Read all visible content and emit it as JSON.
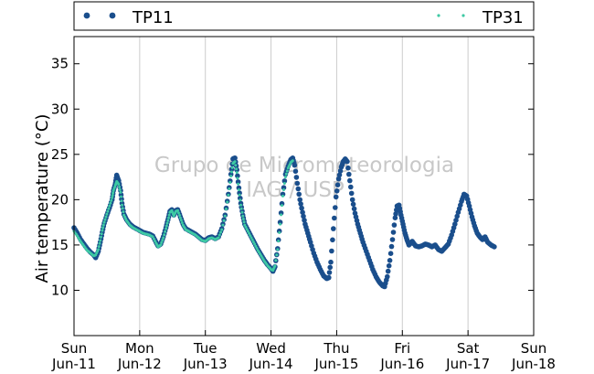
{
  "chart_data": {
    "type": "scatter",
    "title": "",
    "xlabel": "",
    "ylabel": "Air temperature (°C)",
    "ylim": [
      5,
      38
    ],
    "yticks": [
      10,
      15,
      20,
      25,
      30,
      35
    ],
    "x_range_days": [
      "Sun Jun-11",
      "Sun Jun-18"
    ],
    "x_ticks": [
      {
        "day": "Sun",
        "date": "Jun-11"
      },
      {
        "day": "Mon",
        "date": "Jun-12"
      },
      {
        "day": "Tue",
        "date": "Jun-13"
      },
      {
        "day": "Wed",
        "date": "Jun-14"
      },
      {
        "day": "Thu",
        "date": "Jun-15"
      },
      {
        "day": "Fri",
        "date": "Jun-16"
      },
      {
        "day": "Sat",
        "date": "Jun-17"
      },
      {
        "day": "Sun",
        "date": "Jun-18"
      }
    ],
    "grid": "vertical",
    "legend_placement": "top, outside plot",
    "watermark": [
      "Grupo de Micrometeorologia",
      "IAG / USP"
    ],
    "series": [
      {
        "name": "TP11",
        "color": "#1a4e8c",
        "marker": "circle",
        "points": [
          [
            0.0,
            16.9
          ],
          [
            0.05,
            16.3
          ],
          [
            0.1,
            15.6
          ],
          [
            0.15,
            15.1
          ],
          [
            0.2,
            14.6
          ],
          [
            0.25,
            14.2
          ],
          [
            0.3,
            13.9
          ],
          [
            0.33,
            13.6
          ],
          [
            0.37,
            14.3
          ],
          [
            0.4,
            15.3
          ],
          [
            0.43,
            16.4
          ],
          [
            0.46,
            17.4
          ],
          [
            0.5,
            18.3
          ],
          [
            0.54,
            19.1
          ],
          [
            0.58,
            20.0
          ],
          [
            0.6,
            21.0
          ],
          [
            0.63,
            21.8
          ],
          [
            0.65,
            22.7
          ],
          [
            0.68,
            22.1
          ],
          [
            0.71,
            21.0
          ],
          [
            0.73,
            19.6
          ],
          [
            0.76,
            18.4
          ],
          [
            0.8,
            17.8
          ],
          [
            0.85,
            17.3
          ],
          [
            0.9,
            17.0
          ],
          [
            0.95,
            16.8
          ],
          [
            1.0,
            16.6
          ],
          [
            1.05,
            16.4
          ],
          [
            1.1,
            16.3
          ],
          [
            1.15,
            16.2
          ],
          [
            1.2,
            16.0
          ],
          [
            1.25,
            15.3
          ],
          [
            1.28,
            14.9
          ],
          [
            1.32,
            15.1
          ],
          [
            1.36,
            15.9
          ],
          [
            1.4,
            16.9
          ],
          [
            1.43,
            17.8
          ],
          [
            1.46,
            18.7
          ],
          [
            1.49,
            18.9
          ],
          [
            1.52,
            18.3
          ],
          [
            1.55,
            18.8
          ],
          [
            1.58,
            18.9
          ],
          [
            1.62,
            18.1
          ],
          [
            1.66,
            17.3
          ],
          [
            1.7,
            16.8
          ],
          [
            1.75,
            16.6
          ],
          [
            1.8,
            16.4
          ],
          [
            1.85,
            16.2
          ],
          [
            1.9,
            15.9
          ],
          [
            1.95,
            15.6
          ],
          [
            2.0,
            15.5
          ],
          [
            2.05,
            15.8
          ],
          [
            2.1,
            15.9
          ],
          [
            2.15,
            15.7
          ],
          [
            2.2,
            15.9
          ],
          [
            2.25,
            16.8
          ],
          [
            2.3,
            18.3
          ],
          [
            2.35,
            20.6
          ],
          [
            2.39,
            22.8
          ],
          [
            2.42,
            24.5
          ],
          [
            2.45,
            24.6
          ],
          [
            2.48,
            23.3
          ],
          [
            2.51,
            21.3
          ],
          [
            2.54,
            19.6
          ],
          [
            2.57,
            18.3
          ],
          [
            2.6,
            17.3
          ],
          [
            2.65,
            16.6
          ],
          [
            2.7,
            15.9
          ],
          [
            2.75,
            15.2
          ],
          [
            2.8,
            14.5
          ],
          [
            2.85,
            13.9
          ],
          [
            2.9,
            13.3
          ],
          [
            2.95,
            12.8
          ],
          [
            3.0,
            12.4
          ],
          [
            3.03,
            12.1
          ],
          [
            3.06,
            12.6
          ],
          [
            3.1,
            14.6
          ],
          [
            3.14,
            17.5
          ],
          [
            3.18,
            20.6
          ],
          [
            3.22,
            22.8
          ],
          [
            3.26,
            23.7
          ],
          [
            3.3,
            24.4
          ],
          [
            3.33,
            24.6
          ],
          [
            3.36,
            23.8
          ],
          [
            3.4,
            21.8
          ],
          [
            3.44,
            20.0
          ],
          [
            3.48,
            18.6
          ],
          [
            3.52,
            17.3
          ],
          [
            3.56,
            16.3
          ],
          [
            3.6,
            15.3
          ],
          [
            3.65,
            14.1
          ],
          [
            3.7,
            13.1
          ],
          [
            3.75,
            12.3
          ],
          [
            3.8,
            11.6
          ],
          [
            3.85,
            11.3
          ],
          [
            3.88,
            11.4
          ],
          [
            3.91,
            13.1
          ],
          [
            3.95,
            16.8
          ],
          [
            3.99,
            20.3
          ],
          [
            4.03,
            22.3
          ],
          [
            4.07,
            23.6
          ],
          [
            4.1,
            24.2
          ],
          [
            4.13,
            24.5
          ],
          [
            4.16,
            24.2
          ],
          [
            4.2,
            22.1
          ],
          [
            4.24,
            20.0
          ],
          [
            4.28,
            18.5
          ],
          [
            4.32,
            17.3
          ],
          [
            4.36,
            16.3
          ],
          [
            4.4,
            15.3
          ],
          [
            4.45,
            14.3
          ],
          [
            4.5,
            13.3
          ],
          [
            4.55,
            12.3
          ],
          [
            4.6,
            11.5
          ],
          [
            4.65,
            10.9
          ],
          [
            4.7,
            10.5
          ],
          [
            4.73,
            10.4
          ],
          [
            4.77,
            11.5
          ],
          [
            4.81,
            13.3
          ],
          [
            4.85,
            15.6
          ],
          [
            4.89,
            18.0
          ],
          [
            4.92,
            19.3
          ],
          [
            4.95,
            19.4
          ],
          [
            4.98,
            18.3
          ],
          [
            5.01,
            17.3
          ],
          [
            5.04,
            16.3
          ],
          [
            5.07,
            15.6
          ],
          [
            5.1,
            15.0
          ],
          [
            5.15,
            15.4
          ],
          [
            5.2,
            14.9
          ],
          [
            5.25,
            14.8
          ],
          [
            5.3,
            14.9
          ],
          [
            5.35,
            15.1
          ],
          [
            5.4,
            15.0
          ],
          [
            5.45,
            14.8
          ],
          [
            5.5,
            15.0
          ],
          [
            5.55,
            14.5
          ],
          [
            5.6,
            14.3
          ],
          [
            5.65,
            14.7
          ],
          [
            5.7,
            15.1
          ],
          [
            5.75,
            16.1
          ],
          [
            5.8,
            17.3
          ],
          [
            5.85,
            18.6
          ],
          [
            5.9,
            19.8
          ],
          [
            5.94,
            20.6
          ],
          [
            5.98,
            20.4
          ],
          [
            6.02,
            19.3
          ],
          [
            6.06,
            18.1
          ],
          [
            6.1,
            17.1
          ],
          [
            6.14,
            16.3
          ],
          [
            6.18,
            15.9
          ],
          [
            6.22,
            15.6
          ],
          [
            6.26,
            15.9
          ],
          [
            6.3,
            15.3
          ],
          [
            6.35,
            15.0
          ],
          [
            6.4,
            14.8
          ]
        ]
      },
      {
        "name": "TP31",
        "color": "#3ec9a4",
        "marker": "dot",
        "points": [
          [
            0.0,
            16.5
          ],
          [
            0.05,
            16.0
          ],
          [
            0.1,
            15.4
          ],
          [
            0.15,
            14.9
          ],
          [
            0.2,
            14.4
          ],
          [
            0.25,
            14.1
          ],
          [
            0.3,
            13.8
          ],
          [
            0.33,
            13.9
          ],
          [
            0.37,
            14.5
          ],
          [
            0.4,
            15.5
          ],
          [
            0.43,
            16.6
          ],
          [
            0.46,
            17.5
          ],
          [
            0.5,
            18.4
          ],
          [
            0.54,
            19.3
          ],
          [
            0.58,
            20.2
          ],
          [
            0.6,
            21.0
          ],
          [
            0.63,
            21.6
          ],
          [
            0.65,
            22.0
          ],
          [
            0.68,
            21.7
          ],
          [
            0.71,
            20.8
          ],
          [
            0.73,
            19.4
          ],
          [
            0.76,
            18.3
          ],
          [
            0.8,
            17.7
          ],
          [
            0.85,
            17.2
          ],
          [
            0.9,
            16.9
          ],
          [
            0.95,
            16.7
          ],
          [
            1.0,
            16.5
          ],
          [
            1.05,
            16.3
          ],
          [
            1.1,
            16.2
          ],
          [
            1.15,
            16.1
          ],
          [
            1.2,
            15.9
          ],
          [
            1.25,
            15.2
          ],
          [
            1.28,
            14.8
          ],
          [
            1.32,
            15.0
          ],
          [
            1.36,
            15.8
          ],
          [
            1.4,
            16.8
          ],
          [
            1.43,
            17.7
          ],
          [
            1.46,
            18.6
          ],
          [
            1.49,
            18.8
          ],
          [
            1.52,
            18.2
          ],
          [
            1.55,
            18.7
          ],
          [
            1.58,
            18.8
          ],
          [
            1.62,
            18.0
          ],
          [
            1.66,
            17.2
          ],
          [
            1.7,
            16.7
          ],
          [
            1.75,
            16.5
          ],
          [
            1.8,
            16.3
          ],
          [
            1.85,
            16.1
          ],
          [
            1.9,
            15.8
          ],
          [
            1.95,
            15.5
          ],
          [
            2.0,
            15.4
          ],
          [
            2.05,
            15.7
          ],
          [
            2.1,
            15.8
          ],
          [
            2.15,
            15.6
          ],
          [
            2.2,
            15.8
          ],
          [
            2.25,
            16.7
          ],
          [
            2.3,
            18.2
          ],
          [
            2.35,
            20.5
          ],
          [
            2.39,
            22.6
          ],
          [
            2.42,
            24.0
          ],
          [
            2.45,
            24.2
          ],
          [
            2.48,
            23.0
          ],
          [
            2.51,
            21.1
          ],
          [
            2.54,
            19.4
          ],
          [
            2.57,
            18.2
          ],
          [
            2.6,
            17.2
          ],
          [
            2.65,
            16.5
          ],
          [
            2.7,
            15.8
          ],
          [
            2.75,
            15.1
          ],
          [
            2.8,
            14.4
          ],
          [
            2.85,
            13.8
          ],
          [
            2.9,
            13.2
          ],
          [
            2.95,
            12.7
          ],
          [
            3.0,
            12.3
          ],
          [
            3.03,
            12.2
          ],
          [
            3.06,
            12.7
          ],
          [
            3.1,
            14.5
          ],
          [
            3.14,
            17.3
          ],
          [
            3.18,
            20.4
          ],
          [
            3.22,
            22.5
          ],
          [
            3.26,
            23.5
          ],
          [
            3.3,
            24.1
          ],
          [
            3.33,
            24.3
          ]
        ]
      }
    ]
  }
}
